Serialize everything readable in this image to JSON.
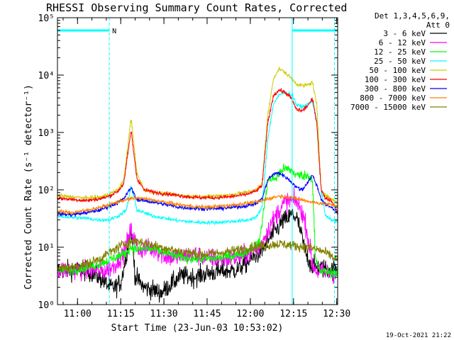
{
  "chart_data": {
    "type": "line",
    "title": "RHESSI Observing Summary Count Rates, Corrected",
    "xlabel": "Start Time (23-Jun-03 10:53:02)",
    "ylabel": "Corrected Count Rate (s⁻¹ detector⁻¹)",
    "xlim_minutes": [
      0,
      97.3
    ],
    "ylim": [
      1,
      100000
    ],
    "yscale": "log",
    "grid": false,
    "legend_position": "right",
    "legend_header": [
      "Det 1,3,4,5,6,9,",
      "Att 0"
    ],
    "x_ticks": [
      {
        "m": 6.97,
        "label": "11:00"
      },
      {
        "m": 21.97,
        "label": "11:15"
      },
      {
        "m": 36.97,
        "label": "11:30"
      },
      {
        "m": 51.97,
        "label": "11:45"
      },
      {
        "m": 66.97,
        "label": "12:00"
      },
      {
        "m": 81.97,
        "label": "12:15"
      },
      {
        "m": 96.97,
        "label": "12:30"
      }
    ],
    "y_ticks": [
      {
        "v": 1,
        "label": "10⁰"
      },
      {
        "v": 10,
        "label": "10¹"
      },
      {
        "v": 100,
        "label": "10²"
      },
      {
        "v": 1000,
        "label": "10³"
      },
      {
        "v": 10000,
        "label": "10⁴"
      },
      {
        "v": 100000,
        "label": "10⁵"
      }
    ],
    "annotations": {
      "night_label": "N",
      "night_bars": [
        [
          0,
          18
        ],
        [
          81.5,
          97.3
        ]
      ],
      "night_bar_value": 60000,
      "dashed_lines_minutes": [
        18,
        96.2
      ],
      "solid_line_minutes": 81.5,
      "timestamp": "19-Oct-2021 21:22"
    },
    "series": [
      {
        "name": "3 - 6 keV",
        "color": "#000000",
        "points": [
          [
            0,
            4
          ],
          [
            4,
            4
          ],
          [
            8,
            4
          ],
          [
            12,
            3.6
          ],
          [
            16,
            2.6
          ],
          [
            18,
            2
          ],
          [
            20,
            2
          ],
          [
            22,
            2.5
          ],
          [
            24,
            8
          ],
          [
            25.5,
            20
          ],
          [
            27,
            3
          ],
          [
            30,
            2
          ],
          [
            33,
            1.8
          ],
          [
            36,
            1.6
          ],
          [
            39,
            2.2
          ],
          [
            43,
            3.2
          ],
          [
            47,
            3
          ],
          [
            52,
            3.5
          ],
          [
            57,
            3.8
          ],
          [
            62,
            4
          ],
          [
            67,
            6
          ],
          [
            71,
            9
          ],
          [
            74,
            15
          ],
          [
            76,
            20
          ],
          [
            78,
            28
          ],
          [
            80,
            32
          ],
          [
            81.5,
            38
          ],
          [
            83,
            32
          ],
          [
            84.5,
            18
          ],
          [
            86,
            8
          ],
          [
            88,
            5
          ],
          [
            90,
            4.5
          ],
          [
            92,
            4.3
          ],
          [
            94,
            4.2
          ],
          [
            96,
            4
          ],
          [
            97.3,
            4
          ]
        ]
      },
      {
        "name": "6 - 12 keV",
        "color": "#ff00ff",
        "points": [
          [
            0,
            4
          ],
          [
            4,
            4
          ],
          [
            8,
            4
          ],
          [
            12,
            4
          ],
          [
            16,
            3.8
          ],
          [
            18,
            4.2
          ],
          [
            20,
            5
          ],
          [
            23,
            8
          ],
          [
            25.5,
            20
          ],
          [
            28,
            9
          ],
          [
            31,
            9.5
          ],
          [
            34,
            9
          ],
          [
            37,
            7
          ],
          [
            40,
            6.5
          ],
          [
            43,
            7
          ],
          [
            47,
            7.5
          ],
          [
            52,
            6.5
          ],
          [
            57,
            6.2
          ],
          [
            62,
            6.5
          ],
          [
            66,
            7.5
          ],
          [
            70,
            10
          ],
          [
            74,
            25
          ],
          [
            77,
            45
          ],
          [
            79,
            60
          ],
          [
            81,
            65
          ],
          [
            83,
            62
          ],
          [
            85,
            40
          ],
          [
            86.5,
            20
          ],
          [
            87.5,
            10
          ],
          [
            88.5,
            5
          ],
          [
            90,
            3.8
          ],
          [
            93,
            3.6
          ],
          [
            95,
            3.5
          ],
          [
            97.3,
            3.5
          ]
        ]
      },
      {
        "name": "12 - 25 keV",
        "color": "#00ff00",
        "points": [
          [
            0,
            4
          ],
          [
            5,
            4
          ],
          [
            10,
            4.5
          ],
          [
            14,
            5
          ],
          [
            18,
            6
          ],
          [
            21,
            7
          ],
          [
            23,
            7.5
          ],
          [
            25.5,
            10
          ],
          [
            28,
            9
          ],
          [
            31,
            9.5
          ],
          [
            34,
            9
          ],
          [
            37,
            8
          ],
          [
            41,
            7
          ],
          [
            45,
            6.5
          ],
          [
            50,
            6.2
          ],
          [
            55,
            6.4
          ],
          [
            60,
            7
          ],
          [
            65,
            8
          ],
          [
            70,
            12
          ],
          [
            73,
            150
          ],
          [
            76,
            160
          ],
          [
            78,
            230
          ],
          [
            80,
            230
          ],
          [
            81.5,
            210
          ],
          [
            83,
            180
          ],
          [
            85,
            180
          ],
          [
            87,
            175
          ],
          [
            88.5,
            160
          ],
          [
            89.5,
            6
          ],
          [
            91,
            3.8
          ],
          [
            94,
            3.7
          ],
          [
            97.3,
            3.6
          ]
        ]
      },
      {
        "name": "25 - 50 keV",
        "color": "#00ffff",
        "points": [
          [
            0,
            35
          ],
          [
            5,
            33
          ],
          [
            10,
            32
          ],
          [
            14,
            30
          ],
          [
            18,
            30
          ],
          [
            21,
            35
          ],
          [
            24,
            45
          ],
          [
            25.5,
            120
          ],
          [
            27.5,
            45
          ],
          [
            30,
            40
          ],
          [
            33,
            35
          ],
          [
            36,
            33
          ],
          [
            40,
            30
          ],
          [
            45,
            28
          ],
          [
            50,
            27
          ],
          [
            55,
            27
          ],
          [
            60,
            28
          ],
          [
            65,
            29
          ],
          [
            69,
            33
          ],
          [
            71,
            50
          ],
          [
            73,
            800
          ],
          [
            75,
            3200
          ],
          [
            77,
            4500
          ],
          [
            79,
            5000
          ],
          [
            81.5,
            4500
          ],
          [
            83,
            3000
          ],
          [
            85,
            2800
          ],
          [
            86.5,
            3000
          ],
          [
            88.5,
            3500
          ],
          [
            90,
            1500
          ],
          [
            91.5,
            100
          ],
          [
            93,
            35
          ],
          [
            95,
            30
          ],
          [
            97.3,
            28
          ]
        ]
      },
      {
        "name": "50 - 100 keV",
        "color": "#cccc00",
        "points": [
          [
            0,
            80
          ],
          [
            5,
            75
          ],
          [
            10,
            72
          ],
          [
            15,
            75
          ],
          [
            18,
            85
          ],
          [
            21,
            100
          ],
          [
            23,
            150
          ],
          [
            25.5,
            1800
          ],
          [
            27.5,
            200
          ],
          [
            30,
            100
          ],
          [
            34,
            90
          ],
          [
            38,
            85
          ],
          [
            42,
            80
          ],
          [
            46,
            78
          ],
          [
            50,
            77
          ],
          [
            55,
            78
          ],
          [
            60,
            82
          ],
          [
            65,
            90
          ],
          [
            69,
            100
          ],
          [
            71,
            130
          ],
          [
            73,
            2000
          ],
          [
            75,
            9000
          ],
          [
            77,
            13000
          ],
          [
            79,
            11000
          ],
          [
            81,
            9000
          ],
          [
            83,
            7000
          ],
          [
            85,
            6500
          ],
          [
            87,
            6800
          ],
          [
            88.5,
            7500
          ],
          [
            90,
            3000
          ],
          [
            91.5,
            100
          ],
          [
            93,
            80
          ],
          [
            95,
            70
          ],
          [
            97.3,
            60
          ]
        ]
      },
      {
        "name": "100 - 300 keV",
        "color": "#ff0000",
        "points": [
          [
            0,
            72
          ],
          [
            5,
            68
          ],
          [
            10,
            65
          ],
          [
            15,
            70
          ],
          [
            18,
            78
          ],
          [
            21,
            95
          ],
          [
            23,
            130
          ],
          [
            25.5,
            1100
          ],
          [
            27.5,
            160
          ],
          [
            30,
            100
          ],
          [
            34,
            90
          ],
          [
            38,
            85
          ],
          [
            42,
            80
          ],
          [
            46,
            75
          ],
          [
            50,
            73
          ],
          [
            55,
            73
          ],
          [
            60,
            76
          ],
          [
            65,
            82
          ],
          [
            69,
            95
          ],
          [
            71,
            120
          ],
          [
            73,
            1500
          ],
          [
            75,
            4500
          ],
          [
            77,
            5500
          ],
          [
            79,
            5000
          ],
          [
            81,
            4000
          ],
          [
            83,
            2500
          ],
          [
            85,
            2400
          ],
          [
            87,
            3000
          ],
          [
            88.5,
            3800
          ],
          [
            90,
            1500
          ],
          [
            91.5,
            100
          ],
          [
            93,
            72
          ],
          [
            95,
            65
          ],
          [
            97.3,
            40
          ]
        ]
      },
      {
        "name": "300 - 800 keV",
        "color": "#0000ff",
        "points": [
          [
            0,
            38
          ],
          [
            5,
            37
          ],
          [
            10,
            40
          ],
          [
            15,
            45
          ],
          [
            18,
            52
          ],
          [
            21,
            60
          ],
          [
            23,
            70
          ],
          [
            25.5,
            110
          ],
          [
            27.5,
            68
          ],
          [
            30,
            65
          ],
          [
            34,
            60
          ],
          [
            38,
            55
          ],
          [
            42,
            50
          ],
          [
            46,
            48
          ],
          [
            50,
            47
          ],
          [
            55,
            47
          ],
          [
            60,
            49
          ],
          [
            65,
            52
          ],
          [
            69,
            58
          ],
          [
            71,
            70
          ],
          [
            73,
            150
          ],
          [
            75,
            190
          ],
          [
            77,
            195
          ],
          [
            79,
            170
          ],
          [
            81,
            140
          ],
          [
            83,
            110
          ],
          [
            85,
            100
          ],
          [
            87,
            140
          ],
          [
            88.5,
            180
          ],
          [
            90,
            120
          ],
          [
            91.5,
            70
          ],
          [
            93,
            55
          ],
          [
            95,
            50
          ],
          [
            97.3,
            40
          ]
        ]
      },
      {
        "name": "800 - 7000 keV",
        "color": "#ff8000",
        "points": [
          [
            0,
            42
          ],
          [
            5,
            40
          ],
          [
            10,
            44
          ],
          [
            15,
            50
          ],
          [
            18,
            55
          ],
          [
            21,
            62
          ],
          [
            24,
            68
          ],
          [
            27,
            72
          ],
          [
            30,
            70
          ],
          [
            34,
            65
          ],
          [
            38,
            60
          ],
          [
            42,
            55
          ],
          [
            46,
            52
          ],
          [
            50,
            50
          ],
          [
            55,
            51
          ],
          [
            60,
            54
          ],
          [
            65,
            58
          ],
          [
            70,
            62
          ],
          [
            74,
            72
          ],
          [
            77,
            78
          ],
          [
            80,
            75
          ],
          [
            83,
            70
          ],
          [
            86,
            65
          ],
          [
            89,
            60
          ],
          [
            92,
            58
          ],
          [
            95,
            55
          ],
          [
            97.3,
            52
          ]
        ]
      },
      {
        "name": "7000 - 15000 keV",
        "color": "#808000",
        "points": [
          [
            0,
            4.2
          ],
          [
            5,
            4.5
          ],
          [
            10,
            5
          ],
          [
            15,
            6.5
          ],
          [
            18,
            8
          ],
          [
            21,
            10
          ],
          [
            24,
            12
          ],
          [
            27,
            13
          ],
          [
            30,
            12
          ],
          [
            34,
            10.5
          ],
          [
            38,
            9.5
          ],
          [
            42,
            8.5
          ],
          [
            46,
            8
          ],
          [
            50,
            7.5
          ],
          [
            55,
            7.8
          ],
          [
            60,
            8.5
          ],
          [
            65,
            9.5
          ],
          [
            70,
            10.5
          ],
          [
            74,
            11
          ],
          [
            77,
            11.5
          ],
          [
            80,
            11
          ],
          [
            83,
            10.5
          ],
          [
            86,
            10
          ],
          [
            89,
            9.5
          ],
          [
            92,
            8.5
          ],
          [
            95,
            7
          ],
          [
            97.3,
            6
          ]
        ]
      }
    ]
  }
}
